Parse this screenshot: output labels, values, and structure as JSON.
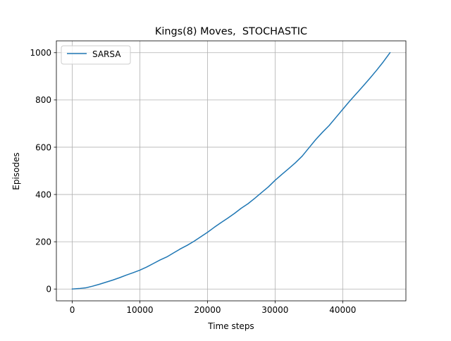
{
  "chart_data": {
    "type": "line",
    "title": "Kings(8) Moves,  STOCHASTIC",
    "xlabel": "Time steps",
    "ylabel": "Episodes",
    "xlim": [
      -2350,
      49350
    ],
    "ylim": [
      -50,
      1050
    ],
    "xticks": [
      0,
      10000,
      20000,
      30000,
      40000
    ],
    "yticks": [
      0,
      200,
      400,
      600,
      800,
      1000
    ],
    "grid": true,
    "legend": "upper-left",
    "series": [
      {
        "name": "SARSA",
        "color": "#1f77b4",
        "x": [
          0,
          1000,
          2000,
          3000,
          4000,
          5000,
          6000,
          7000,
          8000,
          9000,
          10000,
          11000,
          12000,
          13000,
          14000,
          15000,
          16000,
          17000,
          18000,
          19000,
          20000,
          21000,
          22000,
          23000,
          24000,
          25000,
          26000,
          27000,
          28000,
          29000,
          30000,
          31000,
          32000,
          33000,
          34000,
          35000,
          36000,
          37000,
          38000,
          39000,
          40000,
          41000,
          42000,
          43000,
          44000,
          45000,
          46000,
          47000
        ],
        "y": [
          0,
          2,
          5,
          12,
          20,
          29,
          38,
          48,
          59,
          69,
          80,
          93,
          108,
          123,
          136,
          153,
          170,
          185,
          202,
          221,
          240,
          261,
          281,
          300,
          320,
          342,
          361,
          384,
          408,
          432,
          460,
          485,
          509,
          534,
          562,
          597,
          632,
          663,
          692,
          726,
          760,
          794,
          826,
          858,
          891,
          925,
          961,
          1000
        ]
      }
    ]
  }
}
